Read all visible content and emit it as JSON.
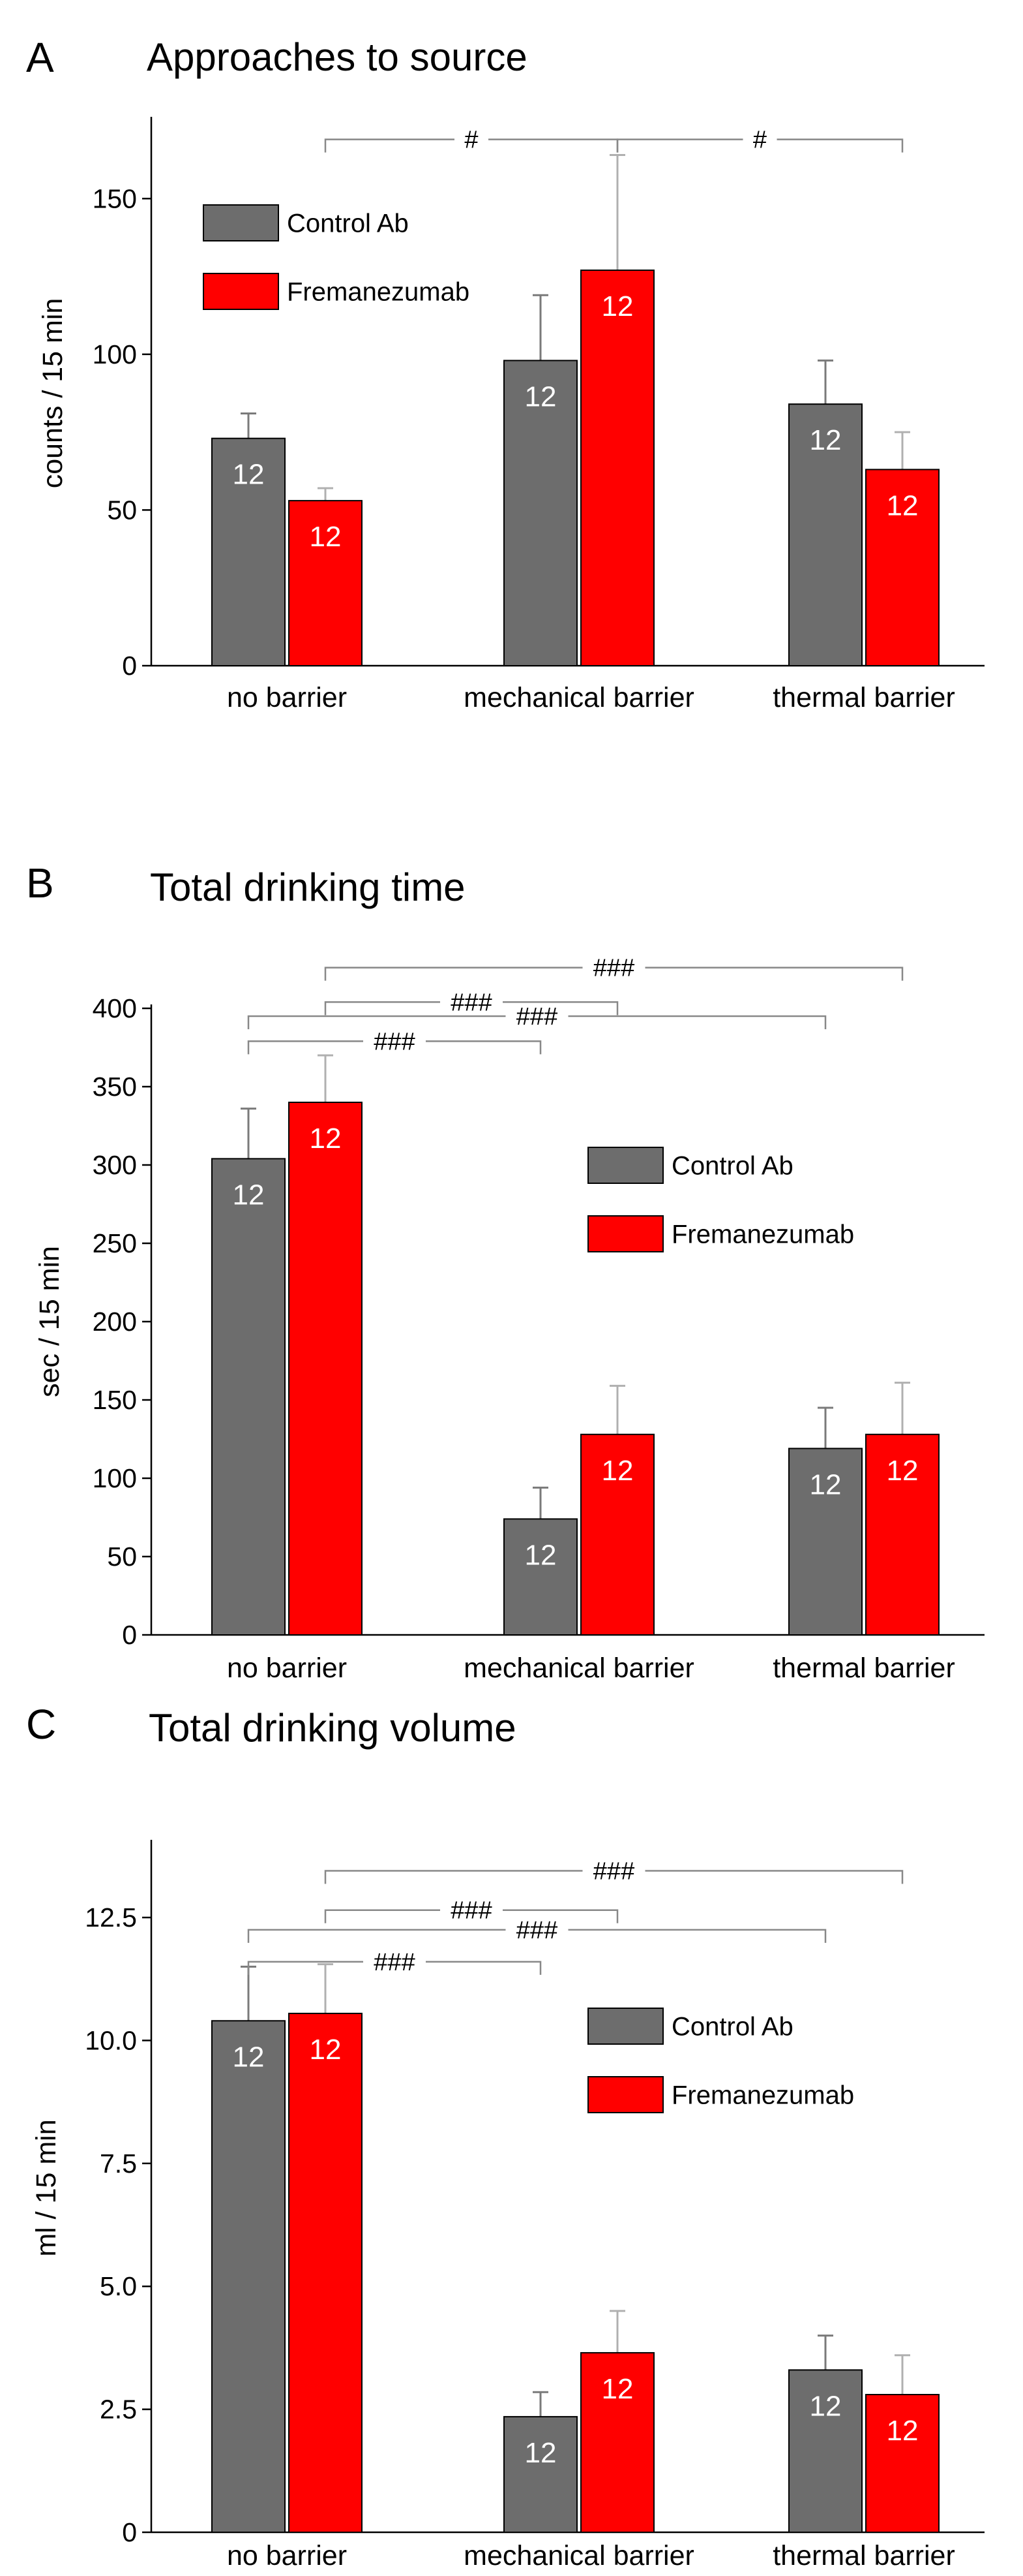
{
  "colors": {
    "control": "#6d6d6d",
    "fremanezumab": "#ff0000",
    "errorbar_control": "#7a7a7a",
    "errorbar_fremanezumab": "#b0b0b0",
    "bracket": "#888888"
  },
  "chart_data": [
    {
      "letter": "A",
      "title": "Approaches to source",
      "type": "bar",
      "ylabel": "counts / 15 min",
      "ylim": [
        0,
        175
      ],
      "yticks": [
        "0",
        "50",
        "100",
        "150"
      ],
      "ytick_values": [
        0,
        50,
        100,
        150
      ],
      "categories": [
        "no barrier",
        "mechanical barrier",
        "thermal barrier"
      ],
      "legend": {
        "position": "top-left",
        "entries": [
          "Control Ab",
          "Fremanezumab"
        ]
      },
      "series": [
        {
          "name": "Control Ab",
          "values": [
            73,
            98,
            84
          ],
          "errors": [
            8,
            21,
            14
          ],
          "n": [
            "12",
            "12",
            "12"
          ]
        },
        {
          "name": "Fremanezumab",
          "values": [
            53,
            127,
            63
          ],
          "errors": [
            4,
            37,
            12
          ],
          "n": [
            "12",
            "12",
            "12"
          ]
        }
      ],
      "significance": [
        {
          "from": "Fremanezumab|no barrier",
          "to": "Fremanezumab|mechanical barrier",
          "label": "#",
          "level": 169
        },
        {
          "from": "Fremanezumab|mechanical barrier",
          "to": "Fremanezumab|thermal barrier",
          "label": "#",
          "level": 169
        }
      ]
    },
    {
      "letter": "B",
      "title": "Total drinking time",
      "type": "bar",
      "ylabel": "sec / 15 min",
      "ylim": [
        0,
        400
      ],
      "yticks": [
        "0",
        "50",
        "100",
        "150",
        "200",
        "250",
        "300",
        "350",
        "400"
      ],
      "ytick_values": [
        0,
        50,
        100,
        150,
        200,
        250,
        300,
        350,
        400
      ],
      "categories": [
        "no barrier",
        "mechanical barrier",
        "thermal barrier"
      ],
      "legend": {
        "position": "center-right",
        "entries": [
          "Control Ab",
          "Fremanezumab"
        ]
      },
      "series": [
        {
          "name": "Control Ab",
          "values": [
            304,
            74,
            119
          ],
          "errors": [
            32,
            20,
            26
          ],
          "n": [
            "12",
            "12",
            "12"
          ]
        },
        {
          "name": "Fremanezumab",
          "values": [
            340,
            128,
            128
          ],
          "errors": [
            30,
            31,
            33
          ],
          "n": [
            "12",
            "12",
            "12"
          ]
        }
      ],
      "significance": [
        {
          "from": "Fremanezumab|no barrier",
          "to": "Fremanezumab|thermal barrier",
          "label": "###",
          "level": 426
        },
        {
          "from": "Fremanezumab|no barrier",
          "to": "Fremanezumab|mechanical barrier",
          "label": "###",
          "level": 404
        },
        {
          "from": "Control Ab|no barrier",
          "to": "Control Ab|thermal barrier",
          "label": "###",
          "level": 395
        },
        {
          "from": "Control Ab|no barrier",
          "to": "Control Ab|mechanical barrier",
          "label": "###",
          "level": 379
        }
      ]
    },
    {
      "letter": "C",
      "title": "Total drinking volume",
      "type": "bar",
      "ylabel": "ml / 15 min",
      "ylim": [
        0,
        14
      ],
      "yticks": [
        "0",
        "2.5",
        "5.0",
        "7.5",
        "10.0",
        "12.5"
      ],
      "ytick_values": [
        0,
        2.5,
        5,
        7.5,
        10,
        12.5
      ],
      "categories": [
        "no barrier",
        "mechanical barrier",
        "thermal barrier"
      ],
      "legend": {
        "position": "center-right",
        "entries": [
          "Control Ab",
          "Fremanezumab"
        ]
      },
      "series": [
        {
          "name": "Control Ab",
          "values": [
            10.4,
            2.35,
            3.3
          ],
          "errors": [
            1.1,
            0.5,
            0.7
          ],
          "n": [
            "12",
            "12",
            "12"
          ]
        },
        {
          "name": "Fremanezumab",
          "values": [
            10.55,
            3.65,
            2.8
          ],
          "errors": [
            1.0,
            0.85,
            0.8
          ],
          "n": [
            "12",
            "12",
            "12"
          ]
        }
      ],
      "significance": [
        {
          "from": "Fremanezumab|no barrier",
          "to": "Fremanezumab|thermal barrier",
          "label": "###",
          "level": 13.45
        },
        {
          "from": "Fremanezumab|no barrier",
          "to": "Fremanezumab|mechanical barrier",
          "label": "###",
          "level": 12.65
        },
        {
          "from": "Control Ab|no barrier",
          "to": "Control Ab|thermal barrier",
          "label": "###",
          "level": 12.25
        },
        {
          "from": "Control Ab|no barrier",
          "to": "Control Ab|mechanical barrier",
          "label": "###",
          "level": 11.6
        }
      ]
    }
  ]
}
